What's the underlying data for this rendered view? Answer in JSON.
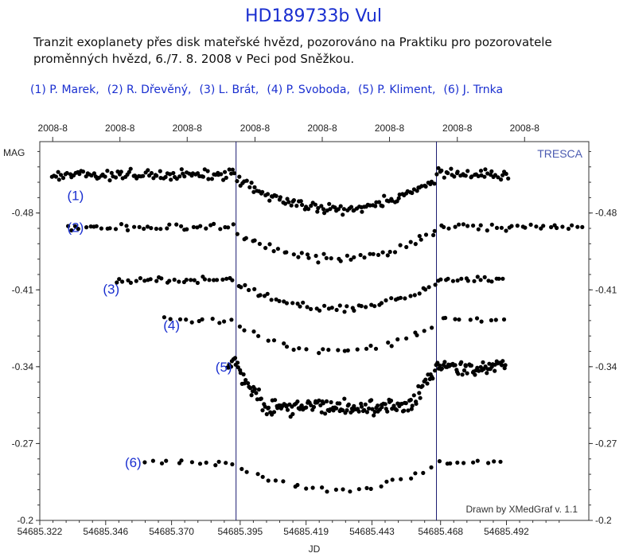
{
  "header": {
    "title": "HD189733b Vul",
    "description": "Tranzit exoplanety přes disk mateřské hvězd, pozorováno na Praktiku pro pozorovatele proměnných hvězd, 6./7. 8. 2008 v Peci pod Sněžkou."
  },
  "observers": [
    "(1) P. Marek,",
    "(2) R. Dřevěný,",
    "(3) L. Brát,",
    "(4) P. Svoboda,",
    "(5) P. Kliment,",
    "(6) J. Trnka"
  ],
  "chart_data": {
    "type": "scatter",
    "title": "HD189733b Vul",
    "xlabel": "JD",
    "ylabel": "MAG",
    "watermark": "TRESCA",
    "credit": "Drawn by XMedGraf v. 1.1",
    "xlim": [
      54685.322,
      54685.522
    ],
    "ylim": [
      -0.2,
      -0.545
    ],
    "x_ticks": [
      "54685.322",
      "54685.346",
      "54685.370",
      "54685.395",
      "54685.419",
      "54685.443",
      "54685.468",
      "54685.492"
    ],
    "x_tick_values": [
      54685.322,
      54685.346,
      54685.37,
      54685.395,
      54685.419,
      54685.443,
      54685.468,
      54685.492
    ],
    "top_ticks": [
      "2008-8",
      "2008-8",
      "2008-8",
      "2008-8",
      "2008-8",
      "2008-8",
      "2008-8",
      "2008-8"
    ],
    "top_tick_values": [
      54685.3267,
      54685.3512,
      54685.3757,
      54685.4004,
      54685.4249,
      54685.4494,
      54685.4741,
      54685.4986
    ],
    "y_ticks": [
      "-0.48",
      "-0.41",
      "-0.34",
      "-0.27",
      "-0.2"
    ],
    "y_tick_values": [
      -0.48,
      -0.41,
      -0.34,
      -0.27,
      -0.2
    ],
    "vertical_lines": [
      54685.3935,
      54685.4665
    ],
    "color_marker": "#000000",
    "color_accent": "#1a2fd0",
    "series": [
      {
        "name": "(1)",
        "label_pos": [
          54685.332,
          -0.496
        ],
        "x_start": 54685.326,
        "x_end": 54685.493,
        "count": 230,
        "baseline": -0.515,
        "depth": 0.031,
        "scatter": 0.007,
        "transit": [
          54685.3935,
          54685.4665
        ],
        "shape": "v"
      },
      {
        "name": "(2)",
        "label_pos": [
          54685.332,
          -0.467
        ],
        "x_start": 54685.331,
        "x_end": 54685.52,
        "count": 115,
        "baseline": -0.467,
        "depth": 0.029,
        "scatter": 0.005,
        "transit": [
          54685.3935,
          54685.4665
        ],
        "shape": "v"
      },
      {
        "name": "(3)",
        "label_pos": [
          54685.345,
          -0.411
        ],
        "x_start": 54685.349,
        "x_end": 54685.492,
        "count": 100,
        "baseline": -0.419,
        "depth": 0.026,
        "scatter": 0.004,
        "transit": [
          54685.3935,
          54685.4665
        ],
        "shape": "v"
      },
      {
        "name": "(4)",
        "label_pos": [
          54685.367,
          -0.378
        ],
        "x_start": 54685.366,
        "x_end": 54685.492,
        "count": 50,
        "baseline": -0.383,
        "depth": 0.029,
        "scatter": 0.004,
        "transit": [
          54685.3935,
          54685.4665
        ],
        "shape": "v"
      },
      {
        "name": "(5)",
        "label_pos": [
          54685.386,
          -0.34
        ],
        "x_start": 54685.39,
        "x_end": 54685.492,
        "count": 220,
        "baseline": -0.34,
        "depth": 0.036,
        "scatter": 0.011,
        "transit": [
          54685.3935,
          54685.4665
        ],
        "shape": "flat"
      },
      {
        "name": "(6)",
        "label_pos": [
          54685.353,
          -0.253
        ],
        "x_start": 54685.36,
        "x_end": 54685.492,
        "count": 50,
        "baseline": -0.253,
        "depth": 0.025,
        "scatter": 0.004,
        "transit": [
          54685.3935,
          54685.4665
        ],
        "shape": "v"
      }
    ]
  }
}
